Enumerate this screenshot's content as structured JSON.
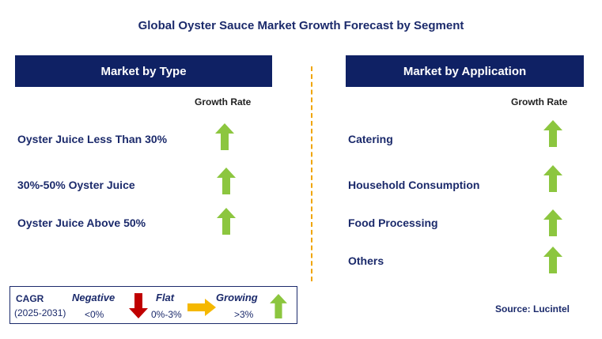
{
  "title": "Global Oyster Sauce Market Growth Forecast by Segment",
  "left_panel": {
    "header": "Market by Type",
    "growth_rate_label": "Growth Rate",
    "items": [
      {
        "label": "Oyster Juice Less Than 30%",
        "trend": "growing"
      },
      {
        "label": "30%-50% Oyster Juice",
        "trend": "growing"
      },
      {
        "label": "Oyster Juice Above 50%",
        "trend": "growing"
      }
    ]
  },
  "right_panel": {
    "header": "Market by Application",
    "growth_rate_label": "Growth Rate",
    "items": [
      {
        "label": "Catering",
        "trend": "growing"
      },
      {
        "label": "Household Consumption",
        "trend": "growing"
      },
      {
        "label": "Food Processing",
        "trend": "growing"
      },
      {
        "label": "Others",
        "trend": "growing"
      }
    ]
  },
  "legend": {
    "cagr_label": "CAGR",
    "period": "(2025-2031)",
    "negative_label": "Negative",
    "negative_range": "<0%",
    "flat_label": "Flat",
    "flat_range": "0%-3%",
    "growing_label": "Growing",
    "growing_range": ">3%"
  },
  "source": "Source: Lucintel",
  "colors": {
    "header_bg": "#0f2164",
    "text": "#1b2a6b",
    "growing_arrow": "#8cc63f",
    "negative_arrow": "#c00000",
    "flat_arrow": "#f5b800",
    "divider": "#f0a500"
  }
}
